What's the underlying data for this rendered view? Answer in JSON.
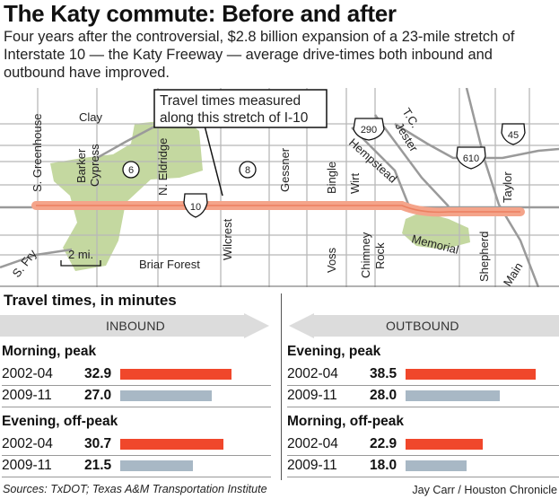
{
  "title": "The Katy commute: Before and after",
  "subtitle": "Four years after the controversial, $2.8 billion expansion of a 23-mile stretch of Interstate 10 — the Katy Freeway — average drive-times both inbound and outbound have improved.",
  "map": {
    "callout": [
      "Travel times measured",
      "along this stretch of I-10"
    ],
    "scale": "2 mi.",
    "shields": {
      "i10": "10",
      "sh6": "6",
      "fm8": "8",
      "us290": "290",
      "i610": "610",
      "i45": "45"
    },
    "places": {
      "clay": "Clay",
      "greenhouse": "S. Greenhouse",
      "barker": "Barker",
      "cypress": "Cypress",
      "eldridge": "N. Eldridge",
      "wilcrest": "Wilcrest",
      "gessner": "Gessner",
      "bingle": "Bingle",
      "wirt": "Wirt",
      "hempstead": "Hempstead",
      "tc": "T.C.",
      "jester": "Jester",
      "taylor": "Taylor",
      "fry": "S. Fry",
      "briar": "Briar Forest",
      "voss": "Voss",
      "chimney": "Chimney",
      "rock": "Rock",
      "memorial": "Memorial",
      "shepherd": "Shepherd",
      "main": "Main"
    }
  },
  "chart_data": {
    "type": "bar",
    "title": "Travel times, in minutes",
    "colors": {
      "before": "#f0472b",
      "after": "#a8b8c5",
      "highway": "#f4a48a",
      "park": "#c4d8a0"
    },
    "xlim": [
      0,
      40
    ],
    "panels": [
      {
        "direction": "INBOUND",
        "groups": [
          {
            "period": "Morning, peak",
            "rows": [
              {
                "years": "2002-04",
                "value": 32.9
              },
              {
                "years": "2009-11",
                "value": 27.0
              }
            ]
          },
          {
            "period": "Evening, off-peak",
            "rows": [
              {
                "years": "2002-04",
                "value": 30.7
              },
              {
                "years": "2009-11",
                "value": 21.5
              }
            ]
          }
        ]
      },
      {
        "direction": "OUTBOUND",
        "groups": [
          {
            "period": "Evening, peak",
            "rows": [
              {
                "years": "2002-04",
                "value": 38.5
              },
              {
                "years": "2009-11",
                "value": 28.0
              }
            ]
          },
          {
            "period": "Morning, off-peak",
            "rows": [
              {
                "years": "2002-04",
                "value": 22.9
              },
              {
                "years": "2009-11",
                "value": 18.0
              }
            ]
          }
        ]
      }
    ]
  },
  "sources": "Sources: TxDOT; Texas A&M Transportation Institute",
  "credit": "Jay Carr / Houston Chronicle"
}
